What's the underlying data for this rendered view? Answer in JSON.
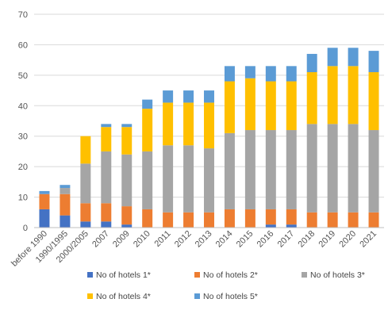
{
  "chart_data": {
    "type": "bar",
    "stacked": true,
    "title": "",
    "xlabel": "",
    "ylabel": "",
    "ylim": [
      0,
      70
    ],
    "yticks": [
      0,
      10,
      20,
      30,
      40,
      50,
      60,
      70
    ],
    "grid": true,
    "legend_position": "bottom",
    "categories": [
      "before 1990",
      "1990/1995",
      "2000/2005",
      "2007",
      "2009",
      "2010",
      "2011",
      "2012",
      "2013",
      "2014",
      "2015",
      "2016",
      "2017",
      "2018",
      "2019",
      "2020",
      "2021"
    ],
    "series": [
      {
        "name": "No of hotels 1*",
        "color": "#4472C4",
        "values": [
          6,
          4,
          2,
          2,
          1,
          0,
          0,
          0,
          0,
          0,
          0,
          1,
          1,
          0,
          0,
          0,
          0
        ]
      },
      {
        "name": "No of hotels 2*",
        "color": "#ED7D31",
        "values": [
          5,
          7,
          6,
          6,
          6,
          6,
          5,
          5,
          5,
          6,
          6,
          5,
          5,
          5,
          5,
          5,
          5
        ]
      },
      {
        "name": "No of hotels 3*",
        "color": "#A5A5A5",
        "values": [
          0,
          2,
          13,
          17,
          17,
          19,
          22,
          22,
          21,
          25,
          26,
          26,
          26,
          29,
          29,
          29,
          27
        ]
      },
      {
        "name": "No of hotels 4*",
        "color": "#FFC000",
        "values": [
          0,
          0,
          9,
          8,
          9,
          14,
          14,
          14,
          15,
          17,
          17,
          16,
          16,
          17,
          19,
          19,
          19
        ]
      },
      {
        "name": "No of hotels 5*",
        "color": "#5B9BD5",
        "values": [
          1,
          1,
          0,
          1,
          1,
          3,
          4,
          4,
          4,
          5,
          4,
          5,
          5,
          6,
          6,
          6,
          7
        ]
      }
    ]
  }
}
